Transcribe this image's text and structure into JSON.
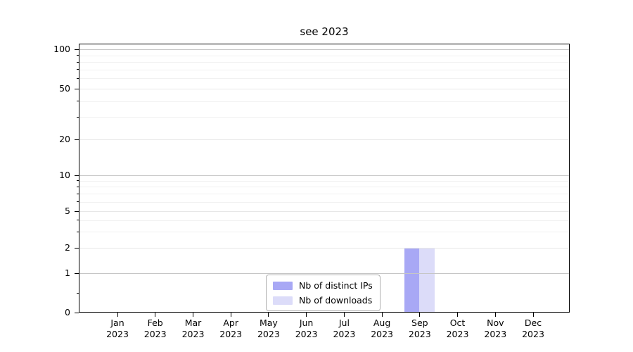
{
  "chart_data": {
    "type": "bar",
    "title": "see 2023",
    "categories": [
      "Jan",
      "Feb",
      "Mar",
      "Apr",
      "May",
      "Jun",
      "Jul",
      "Aug",
      "Sep",
      "Oct",
      "Nov",
      "Dec"
    ],
    "category_year": "2023",
    "series": [
      {
        "name": "Nb of distinct IPs",
        "color": "#a8a8f5",
        "values": [
          0,
          0,
          0,
          0,
          0,
          0,
          0,
          0,
          2,
          0,
          0,
          0
        ]
      },
      {
        "name": "Nb of downloads",
        "color": "#dcdcf9",
        "values": [
          0,
          0,
          0,
          0,
          0,
          0,
          0,
          0,
          2,
          0,
          0,
          0
        ]
      }
    ],
    "y_axis": {
      "scale": "symlog",
      "ticks": [
        0,
        1,
        2,
        5,
        10,
        20,
        50,
        100
      ],
      "minor_ticks": [
        0.5,
        3,
        4,
        6,
        7,
        8,
        9,
        30,
        40,
        60,
        70,
        80,
        90
      ],
      "range": [
        0,
        112
      ]
    },
    "legend": {
      "position": "bottom-center"
    },
    "grid": "both"
  }
}
